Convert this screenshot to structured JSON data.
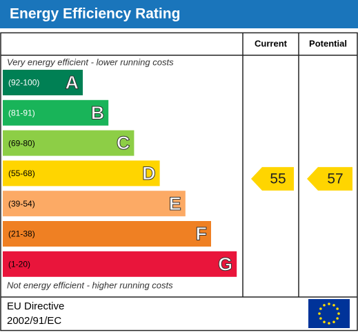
{
  "chart_data": {
    "type": "epc",
    "title": "Energy Efficiency Rating",
    "top_note": "Very energy efficient - lower running costs",
    "bottom_note": "Not energy efficient - higher running costs",
    "bands": [
      {
        "letter": "A",
        "range": {
          "label": "(92-100)",
          "min": 92,
          "max": 100
        },
        "color": "#008054"
      },
      {
        "letter": "B",
        "range": {
          "label": "(81-91)",
          "min": 81,
          "max": 91
        },
        "color": "#19b459"
      },
      {
        "letter": "C",
        "range": {
          "label": "(69-80)",
          "min": 69,
          "max": 80
        },
        "color": "#8dce46"
      },
      {
        "letter": "D",
        "range": {
          "label": "(55-68)",
          "min": 55,
          "max": 68
        },
        "color": "#ffd500"
      },
      {
        "letter": "E",
        "range": {
          "label": "(39-54)",
          "min": 39,
          "max": 54
        },
        "color": "#fcaa65"
      },
      {
        "letter": "F",
        "range": {
          "label": "(21-38)",
          "min": 21,
          "max": 38
        },
        "color": "#ef8023"
      },
      {
        "letter": "G",
        "range": {
          "label": "(1-20)",
          "min": 1,
          "max": 20
        },
        "color": "#e9153b"
      }
    ],
    "columns": [
      {
        "name": "Current",
        "value": 55
      },
      {
        "name": "Potential",
        "value": 57
      }
    ],
    "footer": [
      "EU Directive",
      "2002/91/EC"
    ]
  }
}
